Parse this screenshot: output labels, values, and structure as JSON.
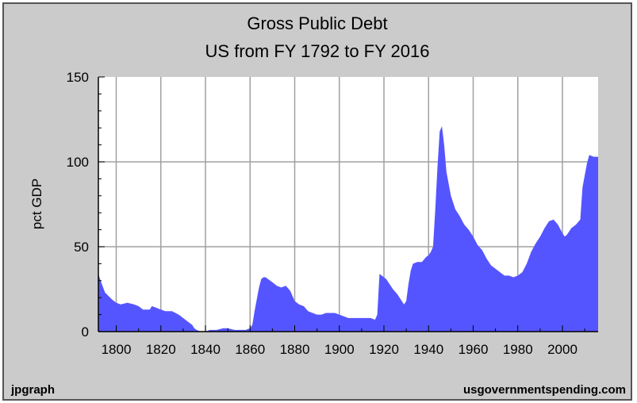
{
  "chart_data": {
    "type": "area",
    "title": "Gross Public Debt",
    "subtitle": "US from FY 1792 to FY 2016",
    "ylabel": "pct GDP",
    "xlabel": "",
    "xlim": [
      1792,
      2016
    ],
    "ylim": [
      0,
      150
    ],
    "yticks": [
      0,
      50,
      100,
      150
    ],
    "xticks": [
      1800,
      1820,
      1840,
      1860,
      1880,
      1900,
      1920,
      1940,
      1960,
      1980,
      2000
    ],
    "grid": true,
    "series_color": "#5555ff",
    "series": [
      {
        "x": [
          1792,
          1793,
          1795,
          1798,
          1800,
          1802,
          1805,
          1808,
          1810,
          1812,
          1813,
          1815,
          1816,
          1818,
          1820,
          1822,
          1825,
          1828,
          1830,
          1832,
          1834,
          1835,
          1836,
          1838,
          1840,
          1842,
          1843,
          1845,
          1848,
          1850,
          1853,
          1855,
          1858,
          1860,
          1861,
          1862,
          1863,
          1864,
          1865,
          1866,
          1867,
          1868,
          1869,
          1870,
          1872,
          1874,
          1876,
          1878,
          1880,
          1882,
          1884,
          1886,
          1888,
          1890,
          1892,
          1894,
          1896,
          1898,
          1900,
          1902,
          1904,
          1906,
          1908,
          1910,
          1912,
          1914,
          1916,
          1917,
          1918,
          1919,
          1920,
          1921,
          1922,
          1924,
          1926,
          1928,
          1929,
          1930,
          1931,
          1932,
          1933,
          1935,
          1937,
          1939,
          1940,
          1941,
          1942,
          1943,
          1944,
          1945,
          1946,
          1947,
          1948,
          1950,
          1952,
          1954,
          1956,
          1958,
          1960,
          1962,
          1964,
          1966,
          1968,
          1970,
          1972,
          1974,
          1976,
          1978,
          1980,
          1982,
          1984,
          1986,
          1988,
          1990,
          1992,
          1994,
          1996,
          1998,
          2000,
          2001,
          2002,
          2004,
          2006,
          2008,
          2009,
          2010,
          2011,
          2012,
          2014,
          2016
        ],
        "values": [
          34,
          30,
          23,
          19,
          17,
          16,
          17,
          16,
          15,
          13,
          13,
          13,
          15,
          14,
          13,
          12,
          12,
          10,
          8,
          6,
          4,
          2,
          1,
          0,
          0,
          1,
          1,
          1,
          2,
          2,
          1,
          1,
          1,
          2,
          4,
          12,
          19,
          26,
          31,
          32,
          32,
          31,
          30,
          29,
          27,
          26,
          27,
          24,
          18,
          16,
          15,
          12,
          11,
          10,
          10,
          11,
          11,
          11,
          10,
          9,
          8,
          8,
          8,
          8,
          8,
          8,
          7,
          10,
          34,
          33,
          32,
          31,
          29,
          25,
          22,
          18,
          16,
          18,
          28,
          36,
          40,
          41,
          41,
          44,
          45,
          47,
          50,
          72,
          97,
          118,
          121,
          110,
          94,
          80,
          72,
          68,
          63,
          60,
          56,
          51,
          48,
          43,
          39,
          37,
          35,
          33,
          33,
          32,
          33,
          35,
          40,
          47,
          52,
          56,
          61,
          65,
          66,
          63,
          58,
          56,
          57,
          61,
          63,
          66,
          85,
          92,
          99,
          104,
          103,
          103
        ]
      }
    ]
  },
  "footer": {
    "left": "jpgraph",
    "right": "usgovernmentspending.com"
  }
}
